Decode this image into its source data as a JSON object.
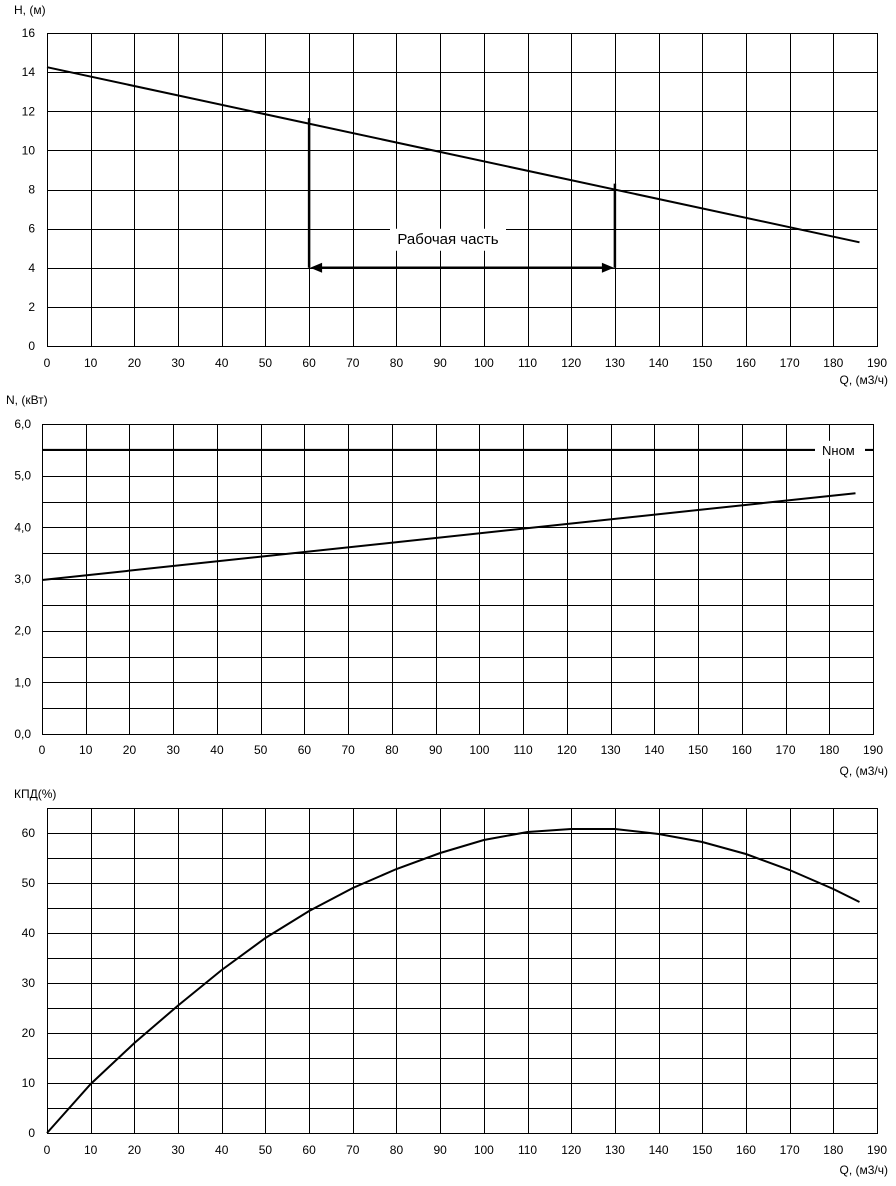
{
  "chart_data": [
    {
      "type": "line",
      "id": "head",
      "ylabel": "H, (м)",
      "xlabel": "Q, (м3/ч)",
      "xlim": [
        0,
        190
      ],
      "ylim": [
        0,
        16
      ],
      "xticks": [
        0,
        10,
        20,
        30,
        40,
        50,
        60,
        70,
        80,
        90,
        100,
        110,
        120,
        130,
        140,
        150,
        160,
        170,
        180,
        190
      ],
      "yticks": [
        0,
        2,
        4,
        6,
        8,
        10,
        12,
        14,
        16
      ],
      "ytick_labels": [
        "0",
        "2",
        "4",
        "6",
        "8",
        "10",
        "12",
        "14",
        "16"
      ],
      "series": [
        {
          "name": "H",
          "x": [
            0,
            186
          ],
          "y": [
            14.25,
            5.3
          ]
        }
      ],
      "working_range": {
        "label": "Рабочая часть",
        "x_start": 60,
        "x_end": 130,
        "y_arrow": 4,
        "y_start_top": 11.65,
        "y_end_top": 8.3
      }
    },
    {
      "type": "line",
      "id": "power",
      "ylabel": "N, (кВт)",
      "xlabel": "Q, (м3/ч)",
      "xlim": [
        0,
        190
      ],
      "ylim": [
        0,
        6
      ],
      "xticks": [
        0,
        10,
        20,
        30,
        40,
        50,
        60,
        70,
        80,
        90,
        100,
        110,
        120,
        130,
        140,
        150,
        160,
        170,
        180,
        190
      ],
      "yticks": [
        0,
        0.5,
        1,
        1.5,
        2,
        2.5,
        3,
        3.5,
        4,
        4.5,
        5,
        5.5,
        6
      ],
      "ytick_labels": [
        "0,0",
        "",
        "1,0",
        "",
        "2,0",
        "",
        "3,0",
        "",
        "4,0",
        "",
        "5,0",
        "",
        "6,0"
      ],
      "series": [
        {
          "name": "N",
          "x": [
            0,
            186
          ],
          "y": [
            2.98,
            4.66
          ]
        }
      ],
      "nominal": {
        "label": "Nном",
        "value": 5.5
      }
    },
    {
      "type": "line",
      "id": "efficiency",
      "ylabel": "КПД(%)",
      "xlabel": "Q, (м3/ч)",
      "xlim": [
        0,
        190
      ],
      "ylim": [
        0,
        65
      ],
      "xticks": [
        0,
        10,
        20,
        30,
        40,
        50,
        60,
        70,
        80,
        90,
        100,
        110,
        120,
        130,
        140,
        150,
        160,
        170,
        180,
        190
      ],
      "yticks": [
        0,
        5,
        10,
        15,
        20,
        25,
        30,
        35,
        40,
        45,
        50,
        55,
        60,
        65
      ],
      "ytick_labels": [
        "0",
        "",
        "10",
        "",
        "20",
        "",
        "30",
        "",
        "40",
        "",
        "50",
        "",
        "60",
        ""
      ],
      "series": [
        {
          "name": "КПД",
          "x": [
            0,
            10,
            20,
            30,
            40,
            50,
            60,
            70,
            80,
            90,
            100,
            110,
            120,
            130,
            140,
            150,
            160,
            170,
            180,
            186
          ],
          "y": [
            0,
            9.8,
            18,
            25.5,
            32.6,
            39,
            44.4,
            49,
            52.8,
            56,
            58.6,
            60.2,
            60.8,
            60.8,
            59.8,
            58.2,
            55.8,
            52.6,
            48.8,
            46.2
          ]
        }
      ]
    }
  ]
}
